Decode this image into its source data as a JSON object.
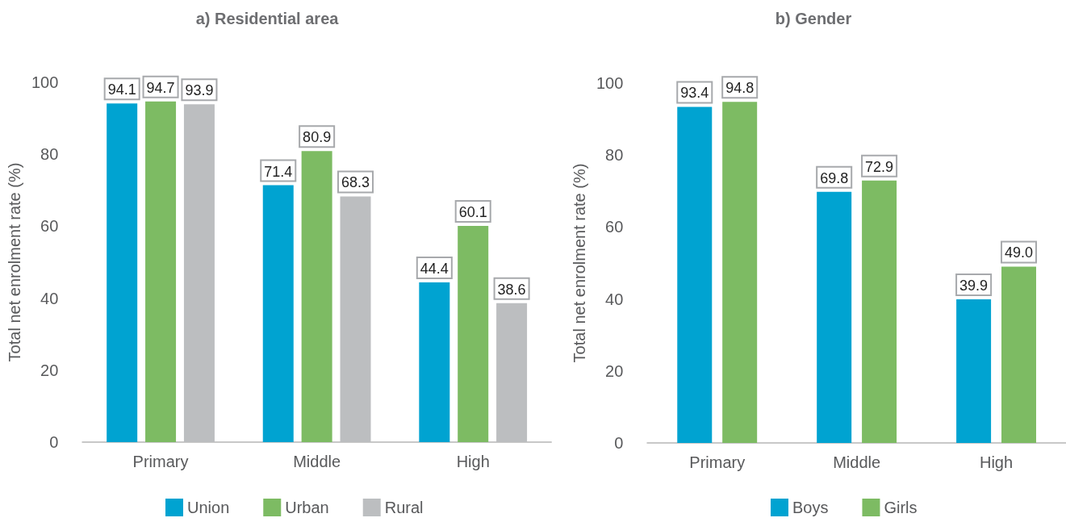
{
  "chart_data": [
    {
      "type": "bar",
      "title": "a) Residential area",
      "ylabel": "Total net enrolment rate (%)",
      "categories": [
        "Primary",
        "Middle",
        "High"
      ],
      "series": [
        {
          "name": "Union",
          "color": "#00a3d1",
          "values": [
            94.1,
            71.4,
            44.4
          ]
        },
        {
          "name": "Urban",
          "color": "#7dbb63",
          "values": [
            94.7,
            80.9,
            60.1
          ]
        },
        {
          "name": "Rural",
          "color": "#bcbec0",
          "values": [
            93.9,
            68.3,
            38.6
          ]
        }
      ],
      "ylim": [
        0,
        100
      ],
      "yticks": [
        0,
        20,
        40,
        60,
        80,
        100
      ],
      "grid": false,
      "legend": "bottom",
      "data_labels": true
    },
    {
      "type": "bar",
      "title": "b) Gender",
      "ylabel": "Total net enrolment rate (%)",
      "categories": [
        "Primary",
        "Middle",
        "High"
      ],
      "series": [
        {
          "name": "Boys",
          "color": "#00a3d1",
          "values": [
            93.4,
            69.8,
            39.9
          ],
          "value_labels": [
            "93.4",
            "69.8",
            "39.9"
          ]
        },
        {
          "name": "Girls",
          "color": "#7dbb63",
          "values": [
            94.8,
            72.9,
            49.0
          ],
          "value_labels": [
            "94.8",
            "72.9",
            "49.0"
          ]
        }
      ],
      "ylim": [
        0,
        100
      ],
      "yticks": [
        0,
        20,
        40,
        60,
        80,
        100
      ],
      "grid": false,
      "legend": "bottom"
    }
  ]
}
